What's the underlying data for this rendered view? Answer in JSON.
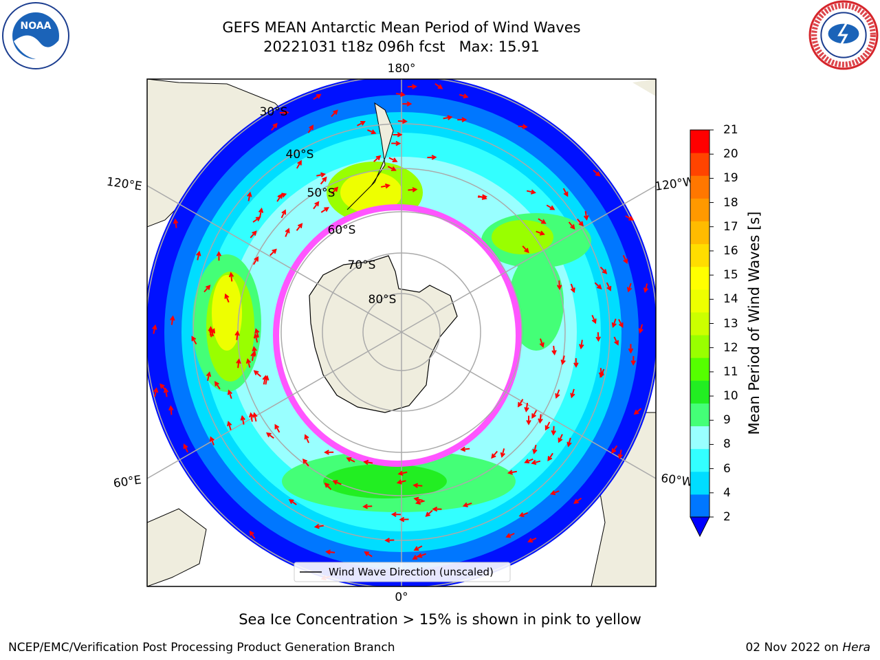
{
  "title": {
    "line1": "GEFS MEAN Antarctic Mean Period of Wind Waves",
    "line2": "20221031 t18z 096h fcst   Max: 15.91"
  },
  "logos": {
    "left": "NOAA",
    "right": "NATIONAL WEATHER SERVICE"
  },
  "map": {
    "projection": "south-polar-stereographic",
    "lon_labels": {
      "top": "180°",
      "bottom": "0°",
      "upper_left": "120°E",
      "upper_right": "120°W",
      "lower_left": "60°E",
      "lower_right": "60°W"
    },
    "lat_labels": [
      "30°S",
      "40°S",
      "50°S",
      "60°S",
      "70°S",
      "80°S"
    ],
    "legend": "Wind Wave Direction (unscaled)",
    "colors": {
      "land": "#efedde",
      "ocean_low": "#0000ff",
      "sea_ice_pink": "#ff55ff",
      "arrows": "#ff0000"
    }
  },
  "colorbar": {
    "label": "Mean Period of Wind Waves [s]",
    "ticks": [
      "21",
      "20",
      "19",
      "18",
      "17",
      "16",
      "15",
      "14",
      "13",
      "12",
      "11",
      "10",
      "9",
      "8",
      "6",
      "4",
      "2"
    ],
    "extend": "min",
    "colors_bottom_to_top": [
      "#0077ff",
      "#00ddff",
      "#33ffff",
      "#99ffff",
      "#44ff77",
      "#22ee22",
      "#55ff00",
      "#99ff00",
      "#ccff00",
      "#eeff00",
      "#ffff00",
      "#ffdd00",
      "#ffbb00",
      "#ff9900",
      "#ff7700",
      "#ff4400",
      "#ff0000"
    ],
    "extend_color": "#0000ff"
  },
  "notes": {
    "ice": "Sea Ice Concentration > 15% is shown in pink to yellow",
    "footer_left": "NCEP/EMC/Verification Post Processing Product Generation Branch",
    "footer_date": "02 Nov 2022 on",
    "footer_machine": "Hera"
  }
}
